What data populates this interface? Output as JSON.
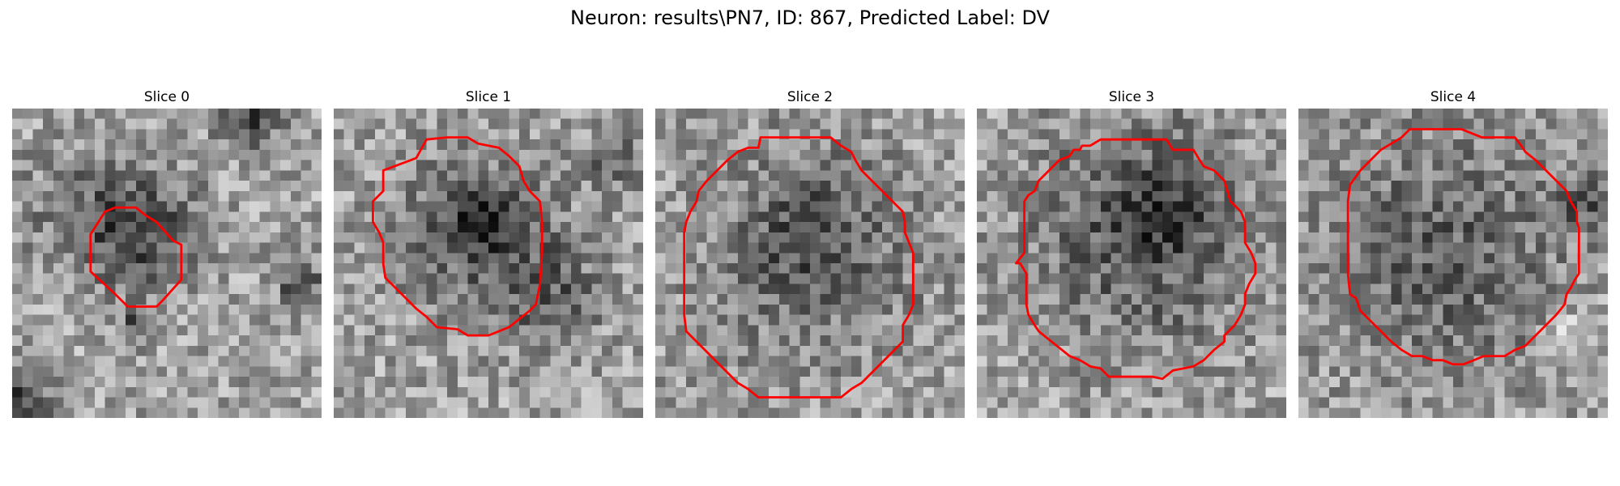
{
  "figure_title": "Neuron: results\\PN7, ID: 867, Predicted Label: DV",
  "contour_color": "#ff0000",
  "grid_size": 30,
  "panels": [
    {
      "label": "Slice 0",
      "seed": 11,
      "blobs": [
        {
          "cx": 13,
          "cy": 12,
          "r": 5.5,
          "s": 0.32
        },
        {
          "cx": 7,
          "cy": 10,
          "r": 6,
          "s": 0.18
        },
        {
          "cx": 23,
          "cy": 1,
          "r": 3,
          "s": 0.35
        },
        {
          "cx": 28,
          "cy": 17,
          "r": 2,
          "s": 0.4
        },
        {
          "cx": 1,
          "cy": 28,
          "r": 3,
          "s": 0.35
        },
        {
          "cx": 12,
          "cy": 21,
          "r": 1.5,
          "s": 0.35
        }
      ],
      "contour": [
        [
          9,
          10
        ],
        [
          10,
          9.6
        ],
        [
          12,
          9.6
        ],
        [
          13,
          10.4
        ],
        [
          14,
          11
        ],
        [
          15.6,
          12.8
        ],
        [
          16.4,
          13.2
        ],
        [
          16.4,
          16.6
        ],
        [
          14.6,
          18.6
        ],
        [
          14,
          19.2
        ],
        [
          11.2,
          19.2
        ],
        [
          10,
          18
        ],
        [
          7.6,
          15.8
        ],
        [
          7.6,
          12.2
        ]
      ]
    },
    {
      "label": "Slice 1",
      "seed": 23,
      "blobs": [
        {
          "cx": 14,
          "cy": 12,
          "r": 8,
          "s": 0.26
        },
        {
          "cx": 14,
          "cy": 11,
          "r": 3,
          "s": 0.3
        },
        {
          "cx": 21,
          "cy": 18,
          "r": 5,
          "s": 0.22
        },
        {
          "cx": 27,
          "cy": 5,
          "r": 3,
          "s": 0.2
        }
      ],
      "contour": [
        [
          8,
          4.8
        ],
        [
          9,
          3
        ],
        [
          11,
          2.8
        ],
        [
          13,
          2.8
        ],
        [
          14,
          3.4
        ],
        [
          16,
          3.8
        ],
        [
          17,
          4.6
        ],
        [
          18,
          5.6
        ],
        [
          18.4,
          7
        ],
        [
          19,
          8
        ],
        [
          20,
          9
        ],
        [
          20.2,
          11
        ],
        [
          20.2,
          14
        ],
        [
          20,
          17
        ],
        [
          19.6,
          19
        ],
        [
          19,
          19.6
        ],
        [
          18,
          20.4
        ],
        [
          17,
          21.2
        ],
        [
          15,
          22
        ],
        [
          13,
          22
        ],
        [
          12,
          21.4
        ],
        [
          10,
          21.2
        ],
        [
          9,
          20.2
        ],
        [
          8,
          19.4
        ],
        [
          7,
          18.4
        ],
        [
          6,
          17.4
        ],
        [
          5,
          16.4
        ],
        [
          4.8,
          15
        ],
        [
          4.8,
          13
        ],
        [
          4.4,
          12
        ],
        [
          3.8,
          11
        ],
        [
          3.8,
          9
        ],
        [
          4.8,
          8
        ],
        [
          4.8,
          6
        ]
      ]
    },
    {
      "label": "Slice 2",
      "seed": 37,
      "blobs": [
        {
          "cx": 15,
          "cy": 14,
          "r": 11,
          "s": 0.22
        },
        {
          "cx": 15,
          "cy": 12,
          "r": 5,
          "s": 0.15
        }
      ],
      "contour": [
        [
          10,
          3.8
        ],
        [
          10.2,
          2.8
        ],
        [
          14,
          2.8
        ],
        [
          17,
          2.8
        ],
        [
          18,
          3.6
        ],
        [
          19,
          4.2
        ],
        [
          19.4,
          5
        ],
        [
          20,
          6
        ],
        [
          21,
          7
        ],
        [
          22,
          8
        ],
        [
          23,
          9
        ],
        [
          24,
          10
        ],
        [
          24.2,
          11
        ],
        [
          24.2,
          12
        ],
        [
          24.6,
          13
        ],
        [
          25,
          14
        ],
        [
          25,
          19
        ],
        [
          24.6,
          20
        ],
        [
          24,
          21
        ],
        [
          24,
          22.6
        ],
        [
          23,
          23.6
        ],
        [
          22,
          24.6
        ],
        [
          21,
          25.6
        ],
        [
          20,
          26.6
        ],
        [
          19,
          27.2
        ],
        [
          18,
          28
        ],
        [
          18,
          28
        ],
        [
          10,
          28
        ],
        [
          9,
          27.2
        ],
        [
          8,
          26.6
        ],
        [
          7,
          25.6
        ],
        [
          6,
          24.6
        ],
        [
          5,
          23.6
        ],
        [
          4,
          22.6
        ],
        [
          3,
          21.6
        ],
        [
          2.8,
          20
        ],
        [
          2.8,
          18
        ],
        [
          2.8,
          12
        ],
        [
          3,
          11
        ],
        [
          3.4,
          10
        ],
        [
          4,
          9
        ],
        [
          4.2,
          8
        ],
        [
          5,
          7
        ],
        [
          6,
          6
        ],
        [
          7,
          5
        ],
        [
          8,
          4.2
        ],
        [
          9,
          3.8
        ]
      ]
    },
    {
      "label": "Slice 3",
      "seed": 41,
      "blobs": [
        {
          "cx": 16,
          "cy": 12,
          "r": 11,
          "s": 0.3
        },
        {
          "cx": 18,
          "cy": 10,
          "r": 4,
          "s": 0.22
        }
      ],
      "contour": [
        [
          8,
          5
        ],
        [
          9,
          4.6
        ],
        [
          9.4,
          4
        ],
        [
          10,
          4
        ],
        [
          10.2,
          3.6
        ],
        [
          11,
          3.6
        ],
        [
          12,
          3
        ],
        [
          13,
          3
        ],
        [
          14,
          3
        ],
        [
          15,
          3
        ],
        [
          16,
          3
        ],
        [
          17,
          3
        ],
        [
          17,
          3
        ],
        [
          18.4,
          3
        ],
        [
          19,
          4
        ],
        [
          21,
          4
        ],
        [
          21.6,
          5
        ],
        [
          22,
          5.6
        ],
        [
          23,
          6
        ],
        [
          24,
          7
        ],
        [
          24.6,
          9
        ],
        [
          25.6,
          10
        ],
        [
          26,
          11
        ],
        [
          26,
          13
        ],
        [
          26.6,
          14
        ],
        [
          27,
          15
        ],
        [
          27,
          16
        ],
        [
          26.4,
          17
        ],
        [
          26,
          18
        ],
        [
          26,
          19
        ],
        [
          25.6,
          20
        ],
        [
          25,
          21
        ],
        [
          24,
          22
        ],
        [
          24,
          22.6
        ],
        [
          23,
          23.4
        ],
        [
          22,
          24.4
        ],
        [
          21,
          25
        ],
        [
          19,
          25.4
        ],
        [
          18,
          26.2
        ],
        [
          17,
          26
        ],
        [
          12.8,
          26
        ],
        [
          12,
          25.2
        ],
        [
          11,
          25
        ],
        [
          10,
          24.4
        ],
        [
          9,
          24
        ],
        [
          8,
          23.2
        ],
        [
          7,
          22.4
        ],
        [
          6,
          21.6
        ],
        [
          5.6,
          21
        ],
        [
          5,
          20
        ],
        [
          4.8,
          19
        ],
        [
          4.8,
          16
        ],
        [
          4.2,
          15
        ],
        [
          3.8,
          15
        ],
        [
          4.6,
          14
        ],
        [
          4.6,
          9
        ],
        [
          5,
          8.4
        ],
        [
          5.6,
          8
        ],
        [
          6,
          7
        ],
        [
          7,
          6
        ]
      ]
    },
    {
      "label": "Slice 4",
      "seed": 53,
      "blobs": [
        {
          "cx": 14,
          "cy": 14,
          "r": 12,
          "s": 0.26
        },
        {
          "cx": 28,
          "cy": 9,
          "r": 3,
          "s": 0.25
        },
        {
          "cx": 27,
          "cy": 22,
          "r": 3,
          "s": -0.2
        }
      ],
      "contour": [
        [
          10,
          2.8
        ],
        [
          10.8,
          2
        ],
        [
          15.8,
          2
        ],
        [
          17.8,
          2.8
        ],
        [
          21,
          2.8
        ],
        [
          21.6,
          3.6
        ],
        [
          22,
          4.2
        ],
        [
          23,
          5
        ],
        [
          24,
          6
        ],
        [
          25,
          7
        ],
        [
          26,
          8
        ],
        [
          26.4,
          9
        ],
        [
          27,
          10
        ],
        [
          27,
          10.6
        ],
        [
          27,
          11
        ],
        [
          27.2,
          11.6
        ],
        [
          27.2,
          16
        ],
        [
          26.8,
          16.6
        ],
        [
          26.4,
          17.4
        ],
        [
          26,
          18
        ],
        [
          25.8,
          19
        ],
        [
          25,
          20
        ],
        [
          24,
          21
        ],
        [
          23,
          22
        ],
        [
          22,
          23
        ],
        [
          21,
          23.4
        ],
        [
          20,
          24
        ],
        [
          19,
          24
        ],
        [
          18,
          24
        ],
        [
          17,
          24.4
        ],
        [
          16,
          24.8
        ],
        [
          15,
          24.8
        ],
        [
          14,
          24.4
        ],
        [
          13,
          24.4
        ],
        [
          12,
          24
        ],
        [
          11,
          24
        ],
        [
          10,
          23.4
        ],
        [
          9,
          22.6
        ],
        [
          8,
          21.6
        ],
        [
          7,
          20.6
        ],
        [
          6,
          19.6
        ],
        [
          5.6,
          18.4
        ],
        [
          5,
          18
        ],
        [
          4.8,
          16
        ],
        [
          4.8,
          9
        ],
        [
          5,
          7.4
        ],
        [
          6,
          6
        ],
        [
          7,
          5
        ],
        [
          8,
          4
        ],
        [
          9,
          3.4
        ]
      ]
    }
  ]
}
